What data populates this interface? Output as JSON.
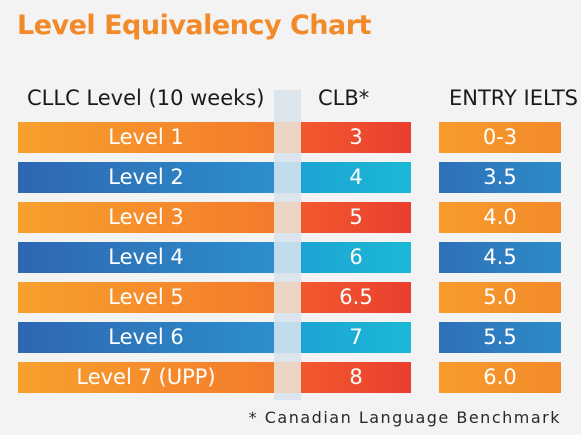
{
  "title": "Level Equivalency Chart",
  "headers": {
    "level": "CLLC Level (10 weeks)",
    "clb": "CLB*",
    "ielts": "ENTRY IELTS"
  },
  "rows": [
    {
      "level": "Level 1",
      "clb": "3",
      "ielts": "0-3",
      "style": "orange"
    },
    {
      "level": "Level 2",
      "clb": "4",
      "ielts": "3.5",
      "style": "blue"
    },
    {
      "level": "Level 3",
      "clb": "5",
      "ielts": "4.0",
      "style": "orange"
    },
    {
      "level": "Level 4",
      "clb": "6",
      "ielts": "4.5",
      "style": "blue"
    },
    {
      "level": "Level 5",
      "clb": "6.5",
      "ielts": "5.0",
      "style": "orange"
    },
    {
      "level": "Level 6",
      "clb": "7",
      "ielts": "5.5",
      "style": "blue"
    },
    {
      "level": "Level 7 (UPP)",
      "clb": "8",
      "ielts": "6.0",
      "style": "orange"
    }
  ],
  "footnote": "* Canadian Language Benchmark",
  "colors": {
    "title": "#f28a2a",
    "orange": "#f47b2c",
    "red": "#ea3e2f",
    "blue": "#2f66b1",
    "cyan": "#1bb8d6"
  }
}
